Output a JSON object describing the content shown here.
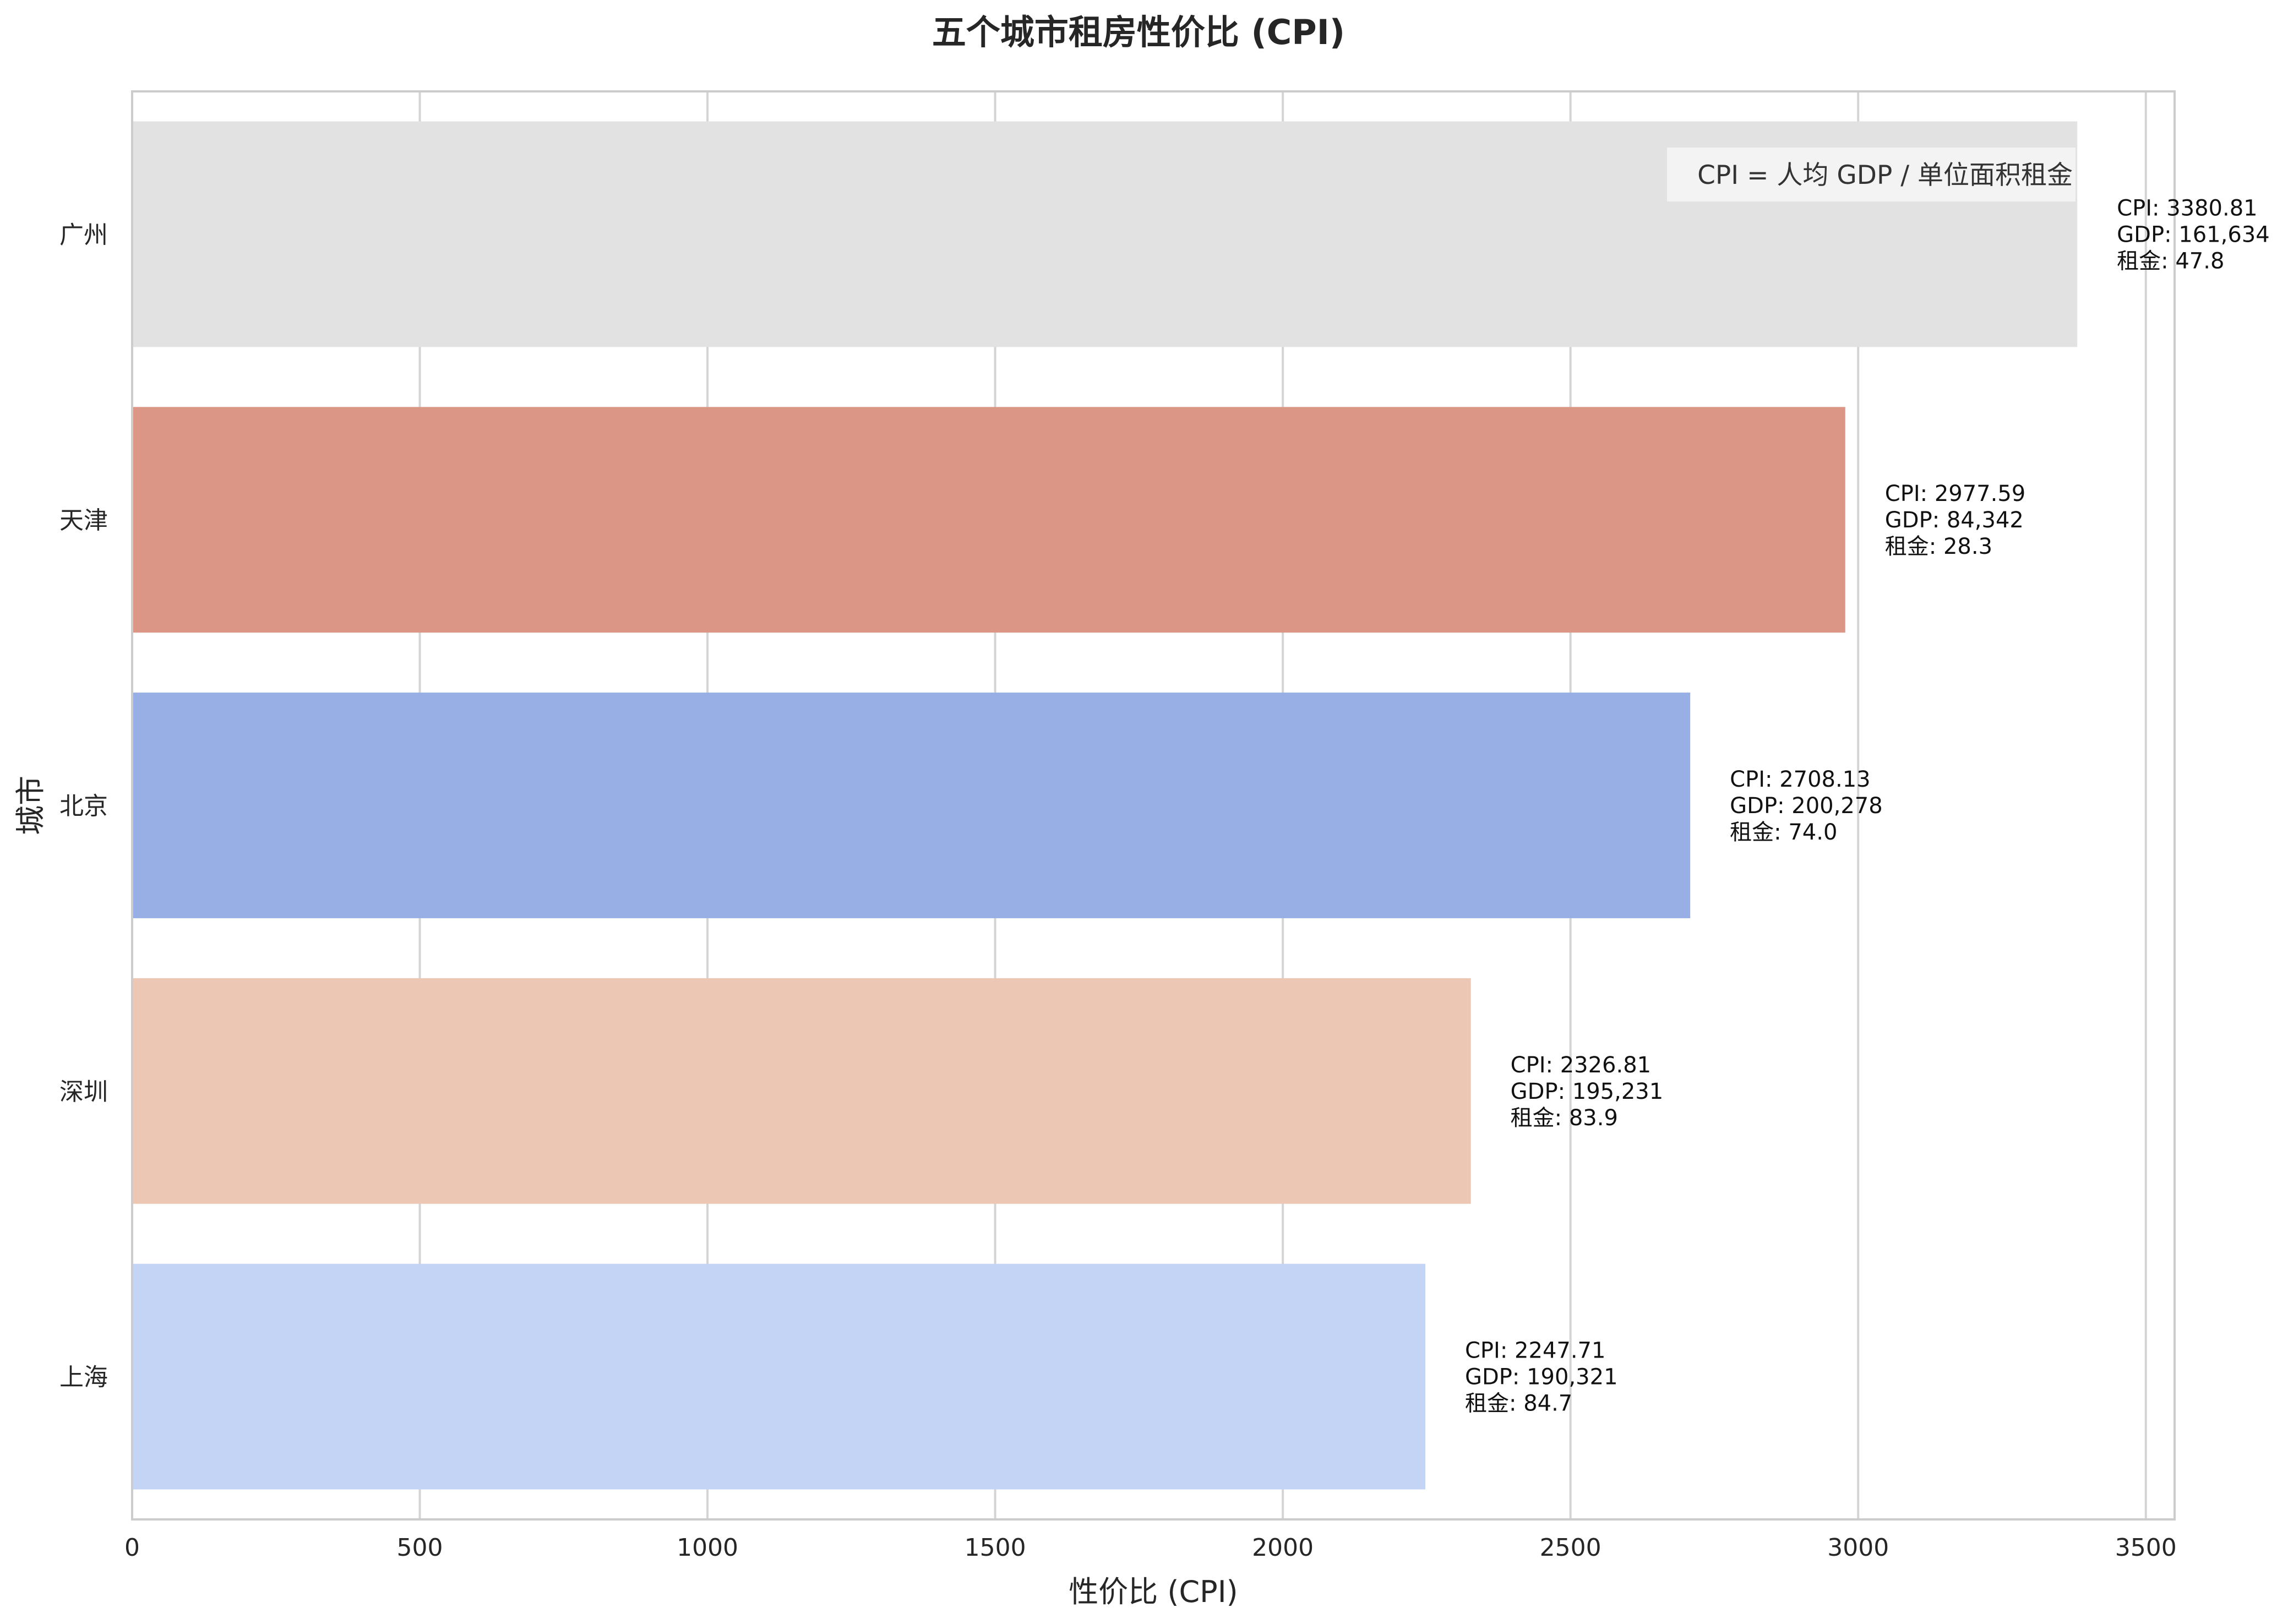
{
  "chart_data": {
    "type": "bar",
    "orientation": "horizontal",
    "title": "五个城市租房性价比 (CPI)",
    "xlabel": "性价比 (CPI)",
    "ylabel": "城市",
    "xlim": [
      0,
      3550
    ],
    "xticks": [
      0,
      500,
      1000,
      1500,
      2000,
      2500,
      3000,
      3500
    ],
    "grid": true,
    "note": "CPI = 人均 GDP / 单位面积租金",
    "categories": [
      "广州",
      "天津",
      "北京",
      "深圳",
      "上海"
    ],
    "values": [
      3380.81,
      2977.59,
      2708.13,
      2326.81,
      2247.71
    ],
    "colors": [
      "#e2e2e2",
      "#dc9685",
      "#98afe6",
      "#ecc7b4",
      "#c4d4f4"
    ],
    "annotations": [
      [
        "CPI: 3380.81",
        "GDP: 161,634",
        "租金: 47.8"
      ],
      [
        "CPI: 2977.59",
        "GDP: 84,342",
        "租金: 28.3"
      ],
      [
        "CPI: 2708.13",
        "GDP: 200,278",
        "租金: 74.0"
      ],
      [
        "CPI: 2326.81",
        "GDP: 195,231",
        "租金: 83.9"
      ],
      [
        "CPI: 2247.71",
        "GDP: 190,321",
        "租金: 84.7"
      ]
    ]
  }
}
